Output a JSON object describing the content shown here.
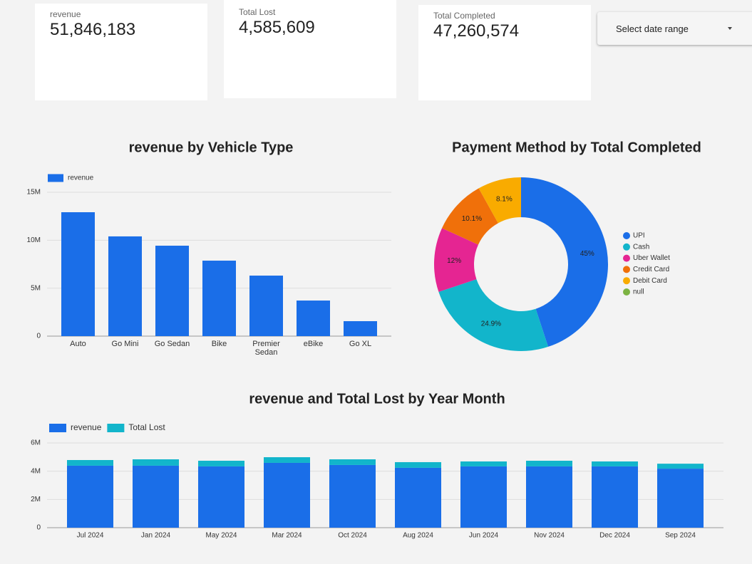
{
  "scorecards": [
    {
      "label": "revenue",
      "value": "51,846,183"
    },
    {
      "label": "Total Lost",
      "value": "4,585,609"
    },
    {
      "label": "Total Completed",
      "value": "47,260,574"
    }
  ],
  "date_picker": {
    "label": "Select date range"
  },
  "chart_data": [
    {
      "type": "bar",
      "title": "revenue by Vehicle Type",
      "categories": [
        "Auto",
        "Go Mini",
        "Go Sedan",
        "Bike",
        "Premier Sedan",
        "eBike",
        "Go XL"
      ],
      "series": [
        {
          "name": "revenue",
          "color": "#1a6ee8",
          "values": [
            12920000,
            10400000,
            9430000,
            7870000,
            6310000,
            3710000,
            1560000
          ]
        }
      ],
      "ylim": [
        0,
        15000000
      ],
      "yticks": [
        0,
        {
          "value": 5000000,
          "label": "5M"
        },
        {
          "value": 10000000,
          "label": "10M"
        },
        {
          "value": 15000000,
          "label": "15M"
        }
      ],
      "grid": true,
      "legend": "top-left"
    },
    {
      "type": "donut",
      "title": "Payment Method by Total Completed",
      "categories": [
        "UPI",
        "Cash",
        "Uber Wallet",
        "Credit Card",
        "Debit Card",
        "null"
      ],
      "values": [
        45,
        24.9,
        12,
        10.1,
        8.1,
        0
      ],
      "value_labels": [
        "45%",
        "24.9%",
        "12%",
        "10.1%",
        "8.1%",
        null
      ],
      "colors": [
        "#1a6ee8",
        "#12b5cb",
        "#e52592",
        "#f0700a",
        "#f9ab00",
        "#7cb342"
      ],
      "legend": "right"
    },
    {
      "type": "stacked_bar",
      "title": "revenue and Total Lost by Year Month",
      "categories": [
        "Jul 2024",
        "Jan 2024",
        "May 2024",
        "Mar 2024",
        "Oct 2024",
        "Aug 2024",
        "Jun 2024",
        "Nov 2024",
        "Dec 2024",
        "Sep 2024"
      ],
      "series": [
        {
          "name": "revenue",
          "color": "#1a6ee8",
          "values": [
            4390000,
            4390000,
            4340000,
            4590000,
            4440000,
            4240000,
            4340000,
            4340000,
            4340000,
            4180000
          ]
        },
        {
          "name": "Total Lost",
          "color": "#12b5cb",
          "values": [
            400000,
            450000,
            400000,
            400000,
            400000,
            400000,
            350000,
            400000,
            350000,
            350000
          ]
        }
      ],
      "ylim": [
        0,
        6000000
      ],
      "yticks": [
        0,
        {
          "value": 2000000,
          "label": "2M"
        },
        {
          "value": 4000000,
          "label": "4M"
        },
        {
          "value": 6000000,
          "label": "6M"
        }
      ],
      "grid": true,
      "legend": "top-left"
    }
  ]
}
